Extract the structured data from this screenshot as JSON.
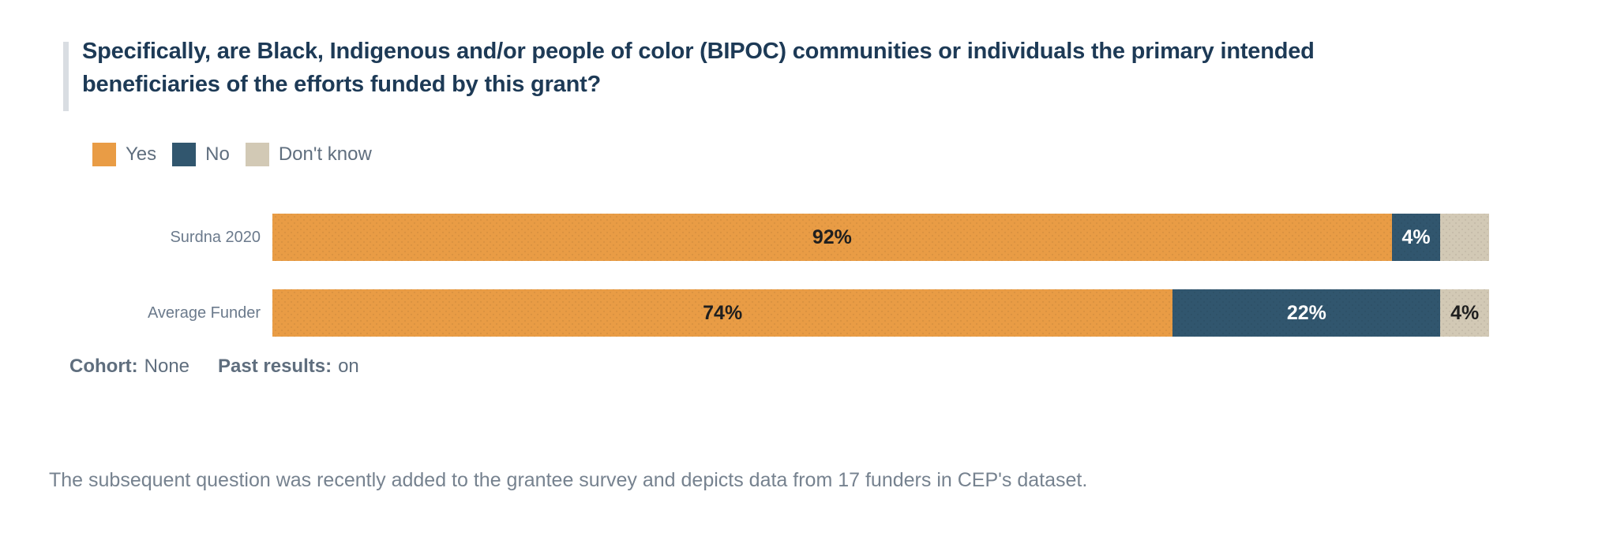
{
  "title": {
    "line1": "Specifically, are Black, Indigenous and/or people of color (BIPOC) communities or individuals the primary intended",
    "line2": "beneficiaries of the efforts funded by this grant?",
    "full": "Specifically, are Black, Indigenous and/or people of color (BIPOC) communities or individuals the primary intended beneficiaries of the efforts funded by this grant?"
  },
  "chart_data": {
    "type": "bar",
    "stacked": true,
    "orientation": "horizontal",
    "xlim": [
      0,
      100
    ],
    "value_format": "percent",
    "grid": false,
    "legend_position": "top-left",
    "categories": [
      "Surdna 2020",
      "Average Funder"
    ],
    "series": [
      {
        "name": "Yes",
        "color": "#e99c45",
        "label_text_color": "#1f1f1f",
        "values": [
          92,
          74
        ],
        "display_labels": [
          "92%",
          "74%"
        ]
      },
      {
        "name": "No",
        "color": "#31566e",
        "label_text_color": "#ffffff",
        "values": [
          4,
          22
        ],
        "display_labels": [
          "4%",
          "22%"
        ]
      },
      {
        "name": "Don't know",
        "color": "#d2c9b5",
        "label_text_color": "#1f1f1f",
        "values": [
          4,
          4
        ],
        "display_labels": [
          "",
          "4%"
        ]
      }
    ]
  },
  "filters": {
    "cohort_label": "Cohort:",
    "cohort_value": "None",
    "past_results_label": "Past results:",
    "past_results_value": "on"
  },
  "footnote": "The subsequent question was recently added to the grantee survey and depicts data from 17 funders in CEP's dataset.",
  "colors": {
    "title_text": "#1d3a56",
    "accent_bar": "#d9dde2",
    "legend_text": "#5f6e7e",
    "category_label_text": "#6b7a8c",
    "footnote_text": "#76828f",
    "yes": "#e99c45",
    "no": "#31566e",
    "dont_know": "#d2c9b5",
    "background": "#ffffff"
  }
}
